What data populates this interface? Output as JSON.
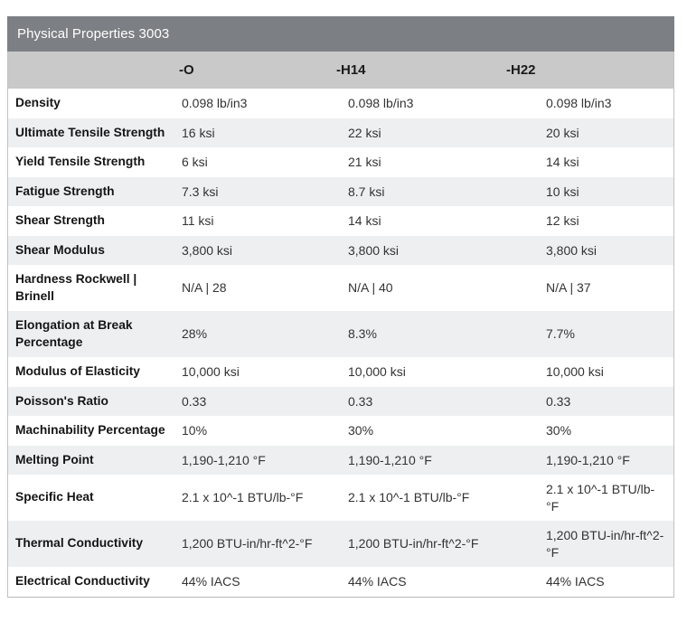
{
  "title": "Physical Properties 3003",
  "colors": {
    "title_bar_bg": "#7c8084",
    "header_bg": "#c9c9c9",
    "alt_row_bg": "#edeff1",
    "border": "#c2c2c6"
  },
  "table": {
    "columns": [
      "",
      "-O",
      "-H14",
      "-H22"
    ],
    "rows": [
      {
        "label": "Density",
        "values": [
          "0.098 lb/in3",
          "0.098 lb/in3",
          "0.098 lb/in3"
        ]
      },
      {
        "label": "Ultimate Tensile Strength",
        "values": [
          "16 ksi",
          "22 ksi",
          "20 ksi"
        ]
      },
      {
        "label": "Yield Tensile Strength",
        "values": [
          "6 ksi",
          "21 ksi",
          "14 ksi"
        ]
      },
      {
        "label": "Fatigue Strength",
        "values": [
          "7.3 ksi",
          "8.7 ksi",
          "10 ksi"
        ]
      },
      {
        "label": "Shear Strength",
        "values": [
          "11 ksi",
          "14 ksi",
          "12 ksi"
        ]
      },
      {
        "label": "Shear Modulus",
        "values": [
          "3,800 ksi",
          "3,800 ksi",
          "3,800 ksi"
        ]
      },
      {
        "label": "Hardness Rockwell | Brinell",
        "values": [
          "N/A | 28",
          "N/A | 40",
          "N/A | 37"
        ]
      },
      {
        "label": "Elongation at Break Percentage",
        "values": [
          "28%",
          "8.3%",
          "7.7%"
        ]
      },
      {
        "label": "Modulus of Elasticity",
        "values": [
          "10,000 ksi",
          "10,000 ksi",
          "10,000 ksi"
        ]
      },
      {
        "label": "Poisson's Ratio",
        "values": [
          "0.33",
          "0.33",
          "0.33"
        ]
      },
      {
        "label": "Machinability Percentage",
        "values": [
          "10%",
          "30%",
          "30%"
        ]
      },
      {
        "label": "Melting Point",
        "values": [
          "1,190-1,210 °F",
          "1,190-1,210 °F",
          "1,190-1,210 °F"
        ]
      },
      {
        "label": "Specific Heat",
        "values": [
          "2.1 x 10^-1 BTU/lb-°F",
          "2.1 x 10^-1 BTU/lb-°F",
          "2.1 x 10^-1 BTU/lb-°F"
        ]
      },
      {
        "label": "Thermal Conductivity",
        "values": [
          "1,200 BTU-in/hr-ft^2-°F",
          "1,200 BTU-in/hr-ft^2-°F",
          "1,200 BTU-in/hr-ft^2-°F"
        ]
      },
      {
        "label": "Electrical Conductivity",
        "values": [
          "44% IACS",
          "44% IACS",
          "44% IACS"
        ]
      }
    ]
  }
}
